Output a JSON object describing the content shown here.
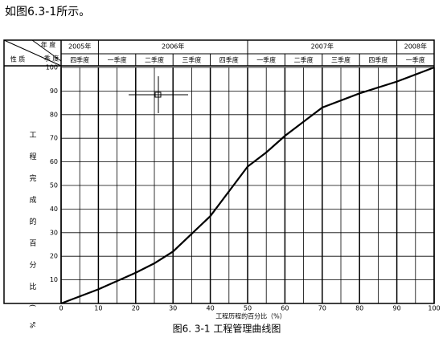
{
  "intro": "如图6.3-1所示。",
  "caption": "图6. 3-1  工程管理曲线图",
  "header": {
    "corner_top": "年 度",
    "corner_mid": "季 度",
    "corner_left": "性 质",
    "years": [
      "2005年",
      "2006年",
      "2007年",
      "2008年"
    ],
    "quarters": [
      "四季度",
      "一季度",
      "二季度",
      "三季度",
      "四季度",
      "一季度",
      "二季度",
      "三季度",
      "四季度",
      "一季度"
    ]
  },
  "chart_data": {
    "type": "line",
    "xlabel": "工程历程的百分比（%）",
    "ylabel": "工程完成的百分比(%)",
    "x": [
      0,
      10,
      20,
      25,
      30,
      40,
      50,
      55,
      60,
      70,
      80,
      90,
      100
    ],
    "values": [
      0,
      6,
      13,
      17,
      22,
      37,
      58,
      64,
      71,
      83,
      89,
      94,
      100
    ],
    "color": "#000000",
    "xlim": [
      0,
      100
    ],
    "ylim": [
      0,
      100
    ],
    "xticks": [
      0,
      10,
      20,
      30,
      40,
      50,
      60,
      70,
      80,
      90,
      100
    ],
    "yticks": [
      10,
      20,
      30,
      40,
      50,
      60,
      70,
      80,
      90,
      100
    ],
    "grid": true
  }
}
